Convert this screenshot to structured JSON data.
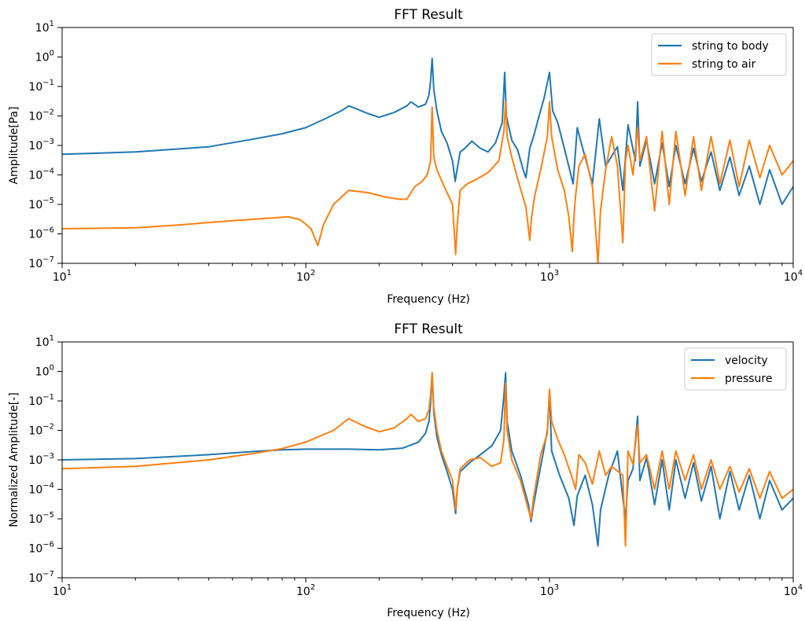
{
  "chart_data": [
    {
      "type": "line",
      "title": "FFT Result",
      "xlabel": "Frequency (Hz)",
      "ylabel": "Amplitude[Pa]",
      "xscale": "log",
      "yscale": "log",
      "xlim": [
        10,
        10000
      ],
      "ylim": [
        1e-07,
        10
      ],
      "xticks": [
        {
          "value": 10,
          "base": "10",
          "exp": "1"
        },
        {
          "value": 100,
          "base": "10",
          "exp": "2"
        },
        {
          "value": 1000,
          "base": "10",
          "exp": "3"
        },
        {
          "value": 10000,
          "base": "10",
          "exp": "4"
        }
      ],
      "yticks": [
        {
          "value": 1e-07,
          "base": "10",
          "exp": "−7"
        },
        {
          "value": 1e-06,
          "base": "10",
          "exp": "−6"
        },
        {
          "value": 1e-05,
          "base": "10",
          "exp": "−5"
        },
        {
          "value": 0.0001,
          "base": "10",
          "exp": "−4"
        },
        {
          "value": 0.001,
          "base": "10",
          "exp": "−3"
        },
        {
          "value": 0.01,
          "base": "10",
          "exp": "−2"
        },
        {
          "value": 0.1,
          "base": "10",
          "exp": "−1"
        },
        {
          "value": 1,
          "base": "10",
          "exp": "0"
        },
        {
          "value": 10,
          "base": "10",
          "exp": "1"
        }
      ],
      "legend_position": "top-right",
      "grid": false,
      "series": [
        {
          "name": "string to body",
          "color": "#1f77b4",
          "x": [
            10,
            20,
            40,
            60,
            80,
            100,
            120,
            140,
            150,
            160,
            180,
            200,
            230,
            260,
            270,
            290,
            310,
            320,
            325,
            330,
            335,
            345,
            360,
            380,
            400,
            410,
            420,
            430,
            450,
            480,
            520,
            560,
            600,
            640,
            655,
            665,
            700,
            740,
            780,
            800,
            830,
            860,
            900,
            950,
            1000,
            1030,
            1080,
            1150,
            1200,
            1250,
            1300,
            1340,
            1400,
            1500,
            1600,
            1700,
            1900,
            2000,
            2100,
            2250,
            2300,
            2350,
            2500,
            2700,
            2900,
            3100,
            3300,
            3600,
            3900,
            4200,
            4600,
            5000,
            5500,
            6000,
            6600,
            7300,
            8000,
            9000,
            10000
          ],
          "y": [
            0.0005,
            0.0006,
            0.0009,
            0.0016,
            0.0025,
            0.004,
            0.008,
            0.015,
            0.022,
            0.018,
            0.012,
            0.009,
            0.013,
            0.022,
            0.03,
            0.02,
            0.025,
            0.05,
            0.15,
            0.9,
            0.08,
            0.015,
            0.003,
            0.0012,
            0.0003,
            6e-05,
            0.0002,
            0.0006,
            0.0008,
            0.0014,
            0.0008,
            0.0006,
            0.0012,
            0.006,
            0.3,
            0.01,
            0.0015,
            0.0007,
            0.00015,
            8e-05,
            0.0008,
            0.002,
            0.008,
            0.04,
            0.3,
            0.015,
            0.006,
            0.0008,
            0.0002,
            5e-05,
            0.004,
            0.0015,
            0.0004,
            5e-05,
            0.008,
            0.0002,
            0.0009,
            3e-05,
            0.005,
            0.0003,
            0.03,
            0.0002,
            0.0015,
            5e-05,
            0.0012,
            4e-05,
            0.001,
            5e-05,
            0.0008,
            6e-05,
            0.0006,
            3e-05,
            0.0004,
            2e-05,
            0.0002,
            1e-05,
            0.00015,
            1e-05,
            4e-05
          ]
        },
        {
          "name": "string to air",
          "color": "#ff7f0e",
          "x": [
            10,
            20,
            30,
            50,
            70,
            85,
            95,
            105,
            112,
            118,
            130,
            150,
            180,
            210,
            240,
            260,
            280,
            300,
            315,
            325,
            330,
            335,
            345,
            370,
            400,
            412,
            418,
            430,
            460,
            500,
            560,
            620,
            650,
            660,
            670,
            700,
            750,
            800,
            830,
            845,
            870,
            920,
            980,
            1000,
            1020,
            1080,
            1150,
            1200,
            1240,
            1260,
            1280,
            1320,
            1400,
            1500,
            1550,
            1580,
            1620,
            1700,
            1800,
            1900,
            2000,
            2050,
            2100,
            2200,
            2300,
            2350,
            2500,
            2700,
            2900,
            3100,
            3300,
            3600,
            3900,
            4200,
            4600,
            5000,
            5500,
            6000,
            6600,
            7300,
            8000,
            9000,
            10000
          ],
          "y": [
            1.5e-06,
            1.6e-06,
            2e-06,
            2.8e-06,
            3.4e-06,
            3.8e-06,
            3e-06,
            1.5e-06,
            4e-07,
            2e-06,
            1e-05,
            3e-05,
            2.5e-05,
            1.8e-05,
            1.5e-05,
            1.5e-05,
            4e-05,
            6e-05,
            0.0001,
            0.0003,
            0.02,
            0.0004,
            0.00015,
            4e-05,
            1e-05,
            2e-07,
            2e-06,
            3e-05,
            5e-05,
            7e-05,
            0.00012,
            0.0003,
            0.003,
            0.03,
            0.002,
            0.0004,
            5e-05,
            8e-06,
            6e-07,
            4e-06,
            2e-05,
            0.00015,
            0.002,
            0.03,
            0.002,
            0.00015,
            3e-05,
            4e-06,
            2.5e-07,
            4e-06,
            2e-05,
            0.0002,
            0.0005,
            4e-05,
            1e-06,
            1e-07,
            6e-06,
            0.00015,
            0.002,
            0.0002,
            5e-07,
            0.0003,
            0.001,
            0.0001,
            0.004,
            0.0003,
            0.002,
            6e-06,
            0.003,
            1e-05,
            0.003,
            2e-05,
            0.002,
            3e-05,
            0.002,
            5e-05,
            0.0015,
            4e-05,
            0.0015,
            8e-05,
            0.001,
            0.0001,
            0.0003
          ]
        }
      ]
    },
    {
      "type": "line",
      "title": "FFT Result",
      "xlabel": "Frequency (Hz)",
      "ylabel": "Normalized Amplitude[-]",
      "xscale": "log",
      "yscale": "log",
      "xlim": [
        10,
        10000
      ],
      "ylim": [
        1e-07,
        10
      ],
      "xticks": [
        {
          "value": 10,
          "base": "10",
          "exp": "1"
        },
        {
          "value": 100,
          "base": "10",
          "exp": "2"
        },
        {
          "value": 1000,
          "base": "10",
          "exp": "3"
        },
        {
          "value": 10000,
          "base": "10",
          "exp": "4"
        }
      ],
      "yticks": [
        {
          "value": 1e-07,
          "base": "10",
          "exp": "−7"
        },
        {
          "value": 1e-06,
          "base": "10",
          "exp": "−6"
        },
        {
          "value": 1e-05,
          "base": "10",
          "exp": "−5"
        },
        {
          "value": 0.0001,
          "base": "10",
          "exp": "−4"
        },
        {
          "value": 0.001,
          "base": "10",
          "exp": "−3"
        },
        {
          "value": 0.01,
          "base": "10",
          "exp": "−2"
        },
        {
          "value": 0.1,
          "base": "10",
          "exp": "−1"
        },
        {
          "value": 1,
          "base": "10",
          "exp": "0"
        },
        {
          "value": 10,
          "base": "10",
          "exp": "1"
        }
      ],
      "legend_position": "top-right",
      "grid": false,
      "series": [
        {
          "name": "velocity",
          "color": "#1f77b4",
          "x": [
            10,
            20,
            40,
            60,
            80,
            100,
            150,
            200,
            250,
            290,
            310,
            320,
            325,
            330,
            335,
            345,
            360,
            380,
            400,
            412,
            418,
            430,
            470,
            520,
            580,
            630,
            650,
            660,
            670,
            700,
            760,
            820,
            840,
            860,
            920,
            980,
            1000,
            1020,
            1100,
            1200,
            1260,
            1300,
            1400,
            1500,
            1580,
            1620,
            1750,
            1900,
            2000,
            2050,
            2100,
            2200,
            2300,
            2350,
            2500,
            2700,
            2900,
            3100,
            3300,
            3600,
            3900,
            4200,
            4600,
            5000,
            5500,
            6000,
            6600,
            7300,
            8000,
            9000,
            10000
          ],
          "y": [
            0.001,
            0.0011,
            0.0015,
            0.0019,
            0.0022,
            0.0023,
            0.0023,
            0.0022,
            0.0025,
            0.004,
            0.008,
            0.02,
            0.08,
            0.9,
            0.04,
            0.006,
            0.0015,
            0.0004,
            0.0001,
            1.5e-05,
            0.0001,
            0.0004,
            0.0008,
            0.0015,
            0.003,
            0.01,
            0.15,
            0.9,
            0.02,
            0.002,
            0.0003,
            3e-05,
            8e-06,
            3e-05,
            0.0006,
            0.01,
            0.2,
            0.002,
            0.0003,
            5e-05,
            6e-06,
            6e-05,
            0.0003,
            3e-05,
            1.2e-06,
            2e-05,
            0.0003,
            0.002,
            5e-05,
            1e-05,
            0.0002,
            0.0005,
            0.03,
            0.0002,
            0.0012,
            3e-05,
            0.001,
            2e-05,
            0.001,
            5e-05,
            0.0008,
            4e-05,
            0.0006,
            1e-05,
            0.0004,
            2e-05,
            0.0003,
            1e-05,
            0.0002,
            2e-05,
            5e-05
          ]
        },
        {
          "name": "pressure",
          "color": "#ff7f0e",
          "x": [
            10,
            20,
            40,
            60,
            80,
            100,
            130,
            150,
            170,
            200,
            230,
            260,
            270,
            290,
            310,
            320,
            325,
            330,
            335,
            345,
            360,
            380,
            400,
            412,
            418,
            430,
            470,
            520,
            580,
            630,
            650,
            660,
            670,
            700,
            760,
            820,
            840,
            860,
            920,
            980,
            1000,
            1020,
            1080,
            1150,
            1250,
            1280,
            1320,
            1400,
            1500,
            1600,
            1700,
            1800,
            2000,
            2050,
            2100,
            2200,
            2300,
            2350,
            2500,
            2700,
            2900,
            3100,
            3300,
            3600,
            3900,
            4200,
            4600,
            5000,
            5500,
            6000,
            6600,
            7300,
            8000,
            9000,
            10000
          ],
          "y": [
            0.0005,
            0.0006,
            0.001,
            0.0016,
            0.0024,
            0.004,
            0.01,
            0.025,
            0.015,
            0.009,
            0.012,
            0.025,
            0.035,
            0.02,
            0.025,
            0.05,
            0.15,
            0.9,
            0.06,
            0.01,
            0.002,
            0.0006,
            0.0002,
            2e-05,
            0.0001,
            0.0005,
            0.001,
            0.0012,
            0.0006,
            0.0008,
            0.005,
            0.4,
            0.01,
            0.001,
            0.0002,
            2e-05,
            1e-05,
            5e-05,
            0.0015,
            0.008,
            0.25,
            0.02,
            0.005,
            0.0015,
            0.0002,
            0.0001,
            0.0015,
            0.0008,
            0.00015,
            0.002,
            0.0003,
            0.0006,
            0.0003,
            1.2e-06,
            0.002,
            0.0007,
            0.015,
            0.0008,
            0.0015,
            0.0001,
            0.002,
            0.0001,
            0.002,
            0.0002,
            0.0015,
            0.0001,
            0.001,
            0.0001,
            0.0006,
            8e-05,
            0.0005,
            5e-05,
            0.0004,
            5e-05,
            0.0001
          ]
        }
      ]
    }
  ]
}
